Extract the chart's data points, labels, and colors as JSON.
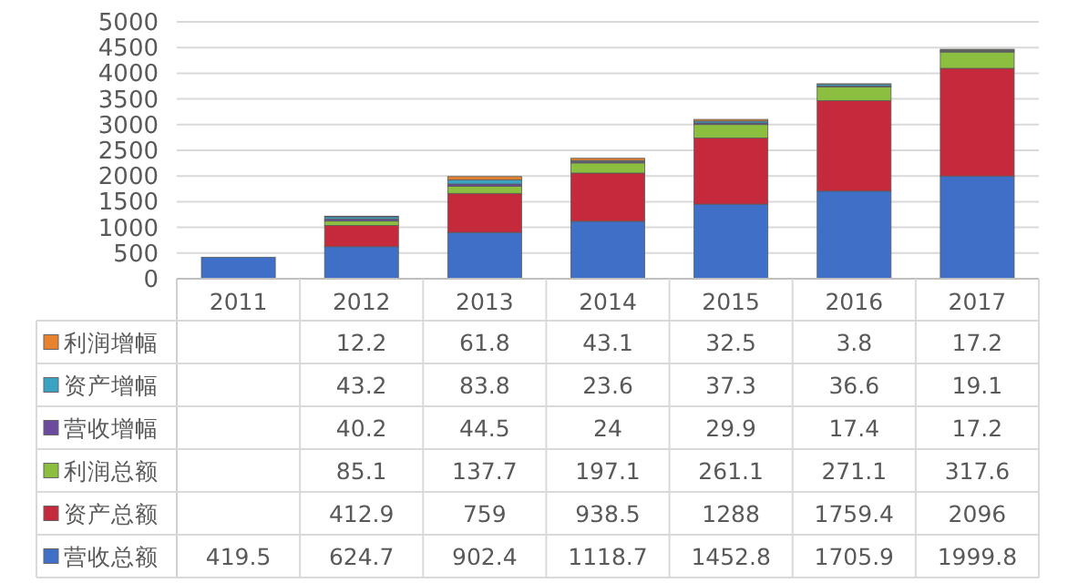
{
  "chart_data": {
    "type": "bar",
    "stacked": true,
    "categories": [
      "2011",
      "2012",
      "2013",
      "2014",
      "2015",
      "2016",
      "2017"
    ],
    "series": [
      {
        "name": "营收总额",
        "color": "#3f6fc6",
        "values": [
          419.5,
          624.7,
          902.4,
          1118.7,
          1452.8,
          1705.9,
          1999.8
        ]
      },
      {
        "name": "资产总额",
        "color": "#c42a3c",
        "values": [
          null,
          412.9,
          759,
          938.5,
          1288,
          1759.4,
          2096
        ]
      },
      {
        "name": "利润总额",
        "color": "#8cbf3f",
        "values": [
          null,
          85.1,
          137.7,
          197.1,
          261.1,
          271.1,
          317.6
        ]
      },
      {
        "name": "营收增幅",
        "color": "#6b4a9e",
        "values": [
          null,
          40.2,
          44.5,
          24,
          29.9,
          17.4,
          17.2
        ]
      },
      {
        "name": "资产增幅",
        "color": "#3aa3c2",
        "values": [
          null,
          43.2,
          83.8,
          23.6,
          37.3,
          36.6,
          19.1
        ]
      },
      {
        "name": "利润增幅",
        "color": "#e8822e",
        "values": [
          null,
          12.2,
          61.8,
          43.1,
          32.5,
          3.8,
          17.2
        ]
      }
    ],
    "ylim": [
      0,
      5000
    ],
    "yticks": [
      0,
      500,
      1000,
      1500,
      2000,
      2500,
      3000,
      3500,
      4000,
      4500,
      5000
    ],
    "grid": "y",
    "data_labels": true,
    "legend": "bottom left"
  }
}
